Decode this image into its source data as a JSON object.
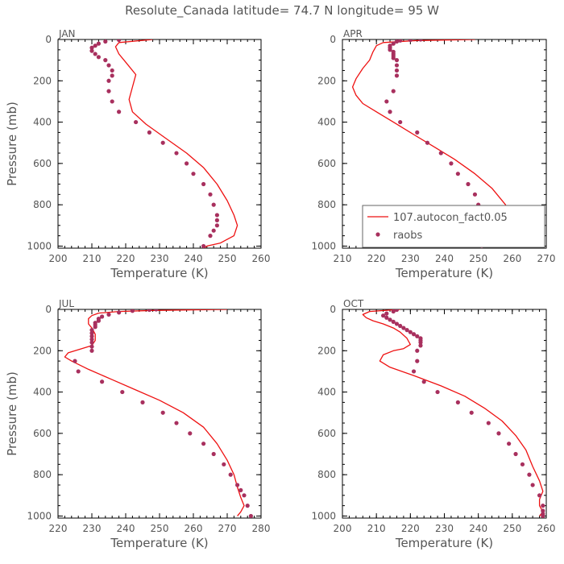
{
  "figure_title": "Resolute_Canada  latitude= 74.7 N longitude= 95 W",
  "colors": {
    "model_line": "#ee1111",
    "raobs_marker": "#a8305e",
    "axis": "#000000",
    "text": "#555555"
  },
  "chart_data": [
    {
      "type": "line",
      "panel_label": "JAN",
      "xlabel": "Temperature (K)",
      "ylabel": "Pressure (mb)",
      "xlim": [
        200,
        260
      ],
      "ylim": [
        1010,
        0
      ],
      "xticks": [
        "200",
        "210",
        "220",
        "230",
        "240",
        "250",
        "260"
      ],
      "yticks": [
        "0",
        "200",
        "400",
        "600",
        "800",
        "1000"
      ],
      "y_inverted": true,
      "grid": false,
      "legend": null,
      "series": [
        {
          "kind": "line",
          "x": [
            228,
            218,
            217,
            218,
            220,
            223,
            222,
            221,
            222,
            226,
            232,
            238,
            243,
            247,
            250,
            252,
            253,
            252,
            248,
            244,
            243
          ],
          "y": [
            0,
            15,
            35,
            70,
            110,
            170,
            230,
            290,
            350,
            410,
            480,
            550,
            620,
            700,
            780,
            850,
            900,
            950,
            985,
            1000,
            1010
          ]
        },
        {
          "kind": "scatter",
          "x": [
            218,
            214,
            212,
            211,
            210,
            210,
            211,
            212,
            214,
            215,
            216,
            216,
            215,
            215,
            216,
            218,
            223,
            227,
            231,
            235,
            238,
            240,
            243,
            245,
            246,
            247,
            247,
            247,
            246,
            245,
            243
          ],
          "y": [
            2,
            10,
            20,
            30,
            40,
            55,
            70,
            85,
            100,
            125,
            150,
            175,
            200,
            250,
            300,
            350,
            400,
            450,
            500,
            550,
            600,
            650,
            700,
            750,
            800,
            850,
            875,
            900,
            925,
            950,
            1000
          ]
        }
      ]
    },
    {
      "type": "line",
      "panel_label": "APR",
      "xlabel": "Temperature (K)",
      "ylabel": "",
      "xlim": [
        210,
        270
      ],
      "ylim": [
        1010,
        0
      ],
      "xticks": [
        "210",
        "220",
        "230",
        "240",
        "250",
        "260",
        "270"
      ],
      "yticks": [
        "0",
        "200",
        "400",
        "600",
        "800",
        "1000"
      ],
      "y_inverted": true,
      "grid": false,
      "legend": {
        "placement": "bottom-right",
        "entries": [
          "107.autocon_fact0.05",
          "raobs"
        ]
      },
      "series": [
        {
          "kind": "line",
          "x": [
            249,
            232,
            222,
            220,
            219,
            218,
            216,
            214,
            213,
            214,
            216,
            220,
            225,
            231,
            237,
            243,
            249,
            254,
            258,
            260,
            259,
            256,
            255
          ],
          "y": [
            0,
            5,
            15,
            30,
            60,
            100,
            140,
            190,
            230,
            270,
            310,
            350,
            400,
            460,
            520,
            580,
            650,
            720,
            800,
            880,
            940,
            985,
            1000
          ]
        },
        {
          "kind": "scatter",
          "x": [
            233,
            230,
            227,
            226,
            225,
            224,
            224,
            224,
            225,
            225,
            225,
            225,
            226,
            226,
            226,
            226,
            225,
            223,
            224,
            227,
            232,
            235,
            239,
            242,
            244,
            247,
            249,
            250,
            251,
            252,
            252,
            252,
            251
          ],
          "y": [
            0,
            2,
            5,
            10,
            20,
            30,
            40,
            50,
            60,
            70,
            80,
            90,
            100,
            125,
            150,
            175,
            250,
            300,
            350,
            400,
            450,
            500,
            550,
            600,
            650,
            700,
            750,
            800,
            850,
            900,
            925,
            950,
            1000
          ]
        }
      ]
    },
    {
      "type": "line",
      "panel_label": "JUL",
      "xlabel": "Temperature (K)",
      "ylabel": "Pressure (mb)",
      "xlim": [
        220,
        280
      ],
      "ylim": [
        1010,
        0
      ],
      "xticks": [
        "220",
        "230",
        "240",
        "250",
        "260",
        "270",
        "280"
      ],
      "yticks": [
        "0",
        "200",
        "400",
        "600",
        "800",
        "1000"
      ],
      "y_inverted": true,
      "grid": false,
      "legend": null,
      "series": [
        {
          "kind": "line",
          "x": [
            270,
            248,
            238,
            232,
            230,
            229,
            229,
            230,
            231,
            231,
            230,
            227,
            223,
            222,
            224,
            229,
            236,
            243,
            250,
            257,
            263,
            267,
            270,
            272,
            273,
            274,
            275,
            274,
            273
          ],
          "y": [
            0,
            5,
            10,
            18,
            30,
            45,
            70,
            90,
            120,
            150,
            175,
            190,
            210,
            230,
            250,
            290,
            340,
            390,
            440,
            500,
            570,
            650,
            730,
            800,
            860,
            910,
            950,
            980,
            1000
          ]
        },
        {
          "kind": "scatter",
          "x": [
            249,
            247,
            242,
            238,
            235,
            233,
            232,
            232,
            231,
            231,
            231,
            230,
            230,
            230,
            230,
            230,
            230,
            230,
            225,
            226,
            233,
            239,
            245,
            251,
            255,
            259,
            263,
            266,
            269,
            271,
            273,
            274,
            275,
            276,
            277
          ],
          "y": [
            0,
            2,
            7,
            15,
            25,
            35,
            45,
            55,
            65,
            75,
            85,
            100,
            115,
            130,
            145,
            160,
            180,
            200,
            250,
            300,
            350,
            400,
            450,
            500,
            550,
            600,
            650,
            700,
            750,
            800,
            850,
            875,
            900,
            950,
            1000
          ]
        }
      ]
    },
    {
      "type": "line",
      "panel_label": "OCT",
      "xlabel": "Temperature (K)",
      "ylabel": "",
      "xlim": [
        200,
        260
      ],
      "ylim": [
        1010,
        0
      ],
      "xticks": [
        "200",
        "210",
        "220",
        "230",
        "240",
        "250",
        "260"
      ],
      "yticks": [
        "0",
        "200",
        "400",
        "600",
        "800",
        "1000"
      ],
      "y_inverted": true,
      "grid": false,
      "legend": null,
      "series": [
        {
          "kind": "line",
          "x": [
            217,
            208,
            206,
            207,
            209,
            212,
            215,
            217,
            219,
            220,
            218,
            215,
            212,
            211,
            214,
            221,
            229,
            236,
            242,
            247,
            251,
            254,
            256,
            258,
            259,
            258,
            258,
            259,
            258
          ],
          "y": [
            0,
            10,
            25,
            40,
            55,
            70,
            90,
            110,
            140,
            170,
            190,
            200,
            220,
            250,
            280,
            320,
            370,
            420,
            480,
            540,
            610,
            680,
            760,
            830,
            880,
            920,
            950,
            980,
            1000
          ]
        },
        {
          "kind": "scatter",
          "x": [
            216,
            215,
            213,
            212,
            213,
            214,
            215,
            216,
            217,
            218,
            219,
            220,
            221,
            222,
            223,
            223,
            223,
            223,
            222,
            222,
            221,
            224,
            228,
            234,
            238,
            243,
            246,
            249,
            251,
            253,
            255,
            256,
            258,
            259,
            259,
            259,
            259
          ],
          "y": [
            2,
            10,
            20,
            30,
            40,
            50,
            60,
            70,
            80,
            90,
            100,
            110,
            120,
            130,
            140,
            150,
            160,
            175,
            200,
            250,
            300,
            350,
            400,
            450,
            500,
            550,
            600,
            650,
            700,
            750,
            800,
            850,
            900,
            950,
            975,
            990,
            1000
          ]
        }
      ]
    }
  ]
}
